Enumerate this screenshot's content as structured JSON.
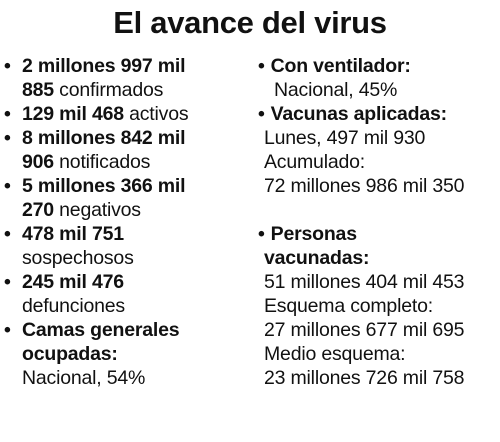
{
  "title": "El avance del virus",
  "left": {
    "items": [
      {
        "bold_1": "2 millones 997 mil",
        "bold_2": "885",
        "text": " confirmados"
      },
      {
        "bold_1": "129 mil 468",
        "text": " activos"
      },
      {
        "bold_1": "8 millones 842 mil",
        "bold_2": "906",
        "text": " notificados"
      },
      {
        "bold_1": "5 millones 366 mil",
        "bold_2": "270",
        "text": " negativos"
      },
      {
        "bold_1": "478 mil 751",
        "text": "sospechosos"
      },
      {
        "bold_1": "245 mil 476",
        "text": "defunciones"
      },
      {
        "bold_1": "Camas generales",
        "bold_2": "ocupadas:",
        "text": "Nacional, 54%"
      }
    ]
  },
  "right": {
    "ventilador": {
      "label": "Con ventilador:",
      "value": "Nacional, 45%"
    },
    "vacunas": {
      "label": "Vacunas aplicadas:",
      "lunes": "Lunes, 497 mil 930",
      "acumulado_label": "Acumulado:",
      "acumulado": "72 millones 986 mil 350"
    },
    "personas": {
      "label_1": "Personas",
      "label_2": "vacunadas:",
      "total": "51 millones 404 mil 453",
      "completo_label": "Esquema completo:",
      "completo": "27 millones 677 mil 695",
      "medio_label": "Medio esquema:",
      "medio": "23 millones 726 mil 758"
    }
  },
  "bullet": "•"
}
